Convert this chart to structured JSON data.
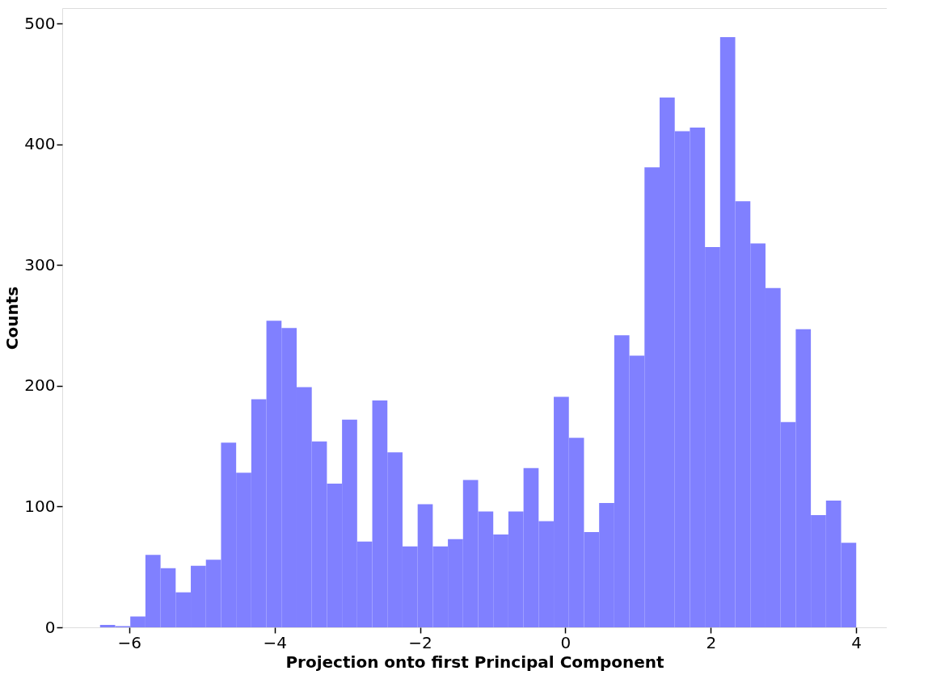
{
  "chart_data": {
    "type": "histogram",
    "xlabel": "Projection onto first Principal Component",
    "ylabel": "Counts",
    "color": "#8080ff",
    "bins": [
      -6.4,
      -6.192,
      -5.984,
      -5.776,
      -5.568,
      -5.36,
      -5.152,
      -4.944,
      -4.736,
      -4.528,
      -4.32,
      -4.112,
      -3.904,
      -3.696,
      -3.488,
      -3.28,
      -3.072,
      -2.864,
      -2.656,
      -2.448,
      -2.24,
      -2.032,
      -1.824,
      -1.616,
      -1.408,
      -1.2,
      -0.992,
      -0.784,
      -0.576,
      -0.368,
      -0.16,
      0.048,
      0.256,
      0.464,
      0.672,
      0.88,
      1.088,
      1.296,
      1.504,
      1.712,
      1.92,
      2.128,
      2.336,
      2.544,
      2.752,
      2.96,
      3.168,
      3.376,
      3.584,
      3.792,
      4.0
    ],
    "values": [
      2,
      1,
      9,
      60,
      49,
      29,
      51,
      56,
      153,
      128,
      189,
      254,
      248,
      199,
      154,
      119,
      172,
      71,
      188,
      145,
      67,
      102,
      67,
      73,
      122,
      96,
      77,
      96,
      132,
      88,
      191,
      157,
      79,
      103,
      242,
      225,
      381,
      439,
      411,
      414,
      315,
      489,
      353,
      318,
      281,
      170,
      247,
      93,
      105,
      70
    ],
    "xlim": [
      -6.92,
      4.42
    ],
    "ylim": [
      0,
      513
    ],
    "xticks": [
      -6,
      -4,
      -2,
      0,
      2,
      4
    ],
    "yticks": [
      0,
      100,
      200,
      300,
      400,
      500
    ],
    "grid": false
  }
}
